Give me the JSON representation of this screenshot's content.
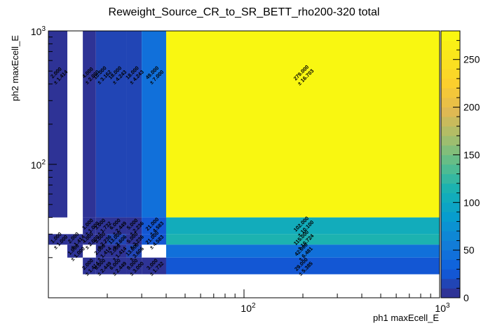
{
  "chart_data": {
    "type": "heatmap",
    "title": "Reweight_Source_CR_to_SR_BETT_rho200-320 total",
    "xlabel": "ph1 maxEcell_E",
    "ylabel": "ph2 maxEcell_E",
    "x_scale": "log",
    "y_scale": "log",
    "xlim": [
      10,
      1000
    ],
    "ylim": [
      10,
      1000
    ],
    "x_tick_labels": [
      "10^2",
      "10^3"
    ],
    "y_tick_labels": [
      "10^2",
      "10^3"
    ],
    "x_edges": [
      10,
      12.5,
      15,
      17.5,
      20,
      25,
      30,
      40,
      1000
    ],
    "y_edges": [
      10,
      15,
      20,
      25,
      30,
      40,
      1000
    ],
    "colorbar": {
      "min": 0,
      "max": 280,
      "ticks": [
        "0",
        "50",
        "100",
        "150",
        "200",
        "250"
      ]
    },
    "cells": [
      {
        "xi": 0,
        "yi": 5,
        "value": 2,
        "error": 1.414,
        "label": "2.000",
        "err_label": "± 1.414"
      },
      {
        "xi": 2,
        "yi": 5,
        "value": 4,
        "error": 2.0,
        "label": "4.000",
        "err_label": "± 2.000"
      },
      {
        "xi": 3,
        "yi": 5,
        "value": 10,
        "error": 3.162,
        "label": "10.000",
        "err_label": "± 3.162"
      },
      {
        "xi": 4,
        "yi": 5,
        "value": 18,
        "error": 4.243,
        "label": "18.000",
        "err_label": "± 4.243"
      },
      {
        "xi": 5,
        "yi": 5,
        "value": 18,
        "error": 4.243,
        "label": "18.000",
        "err_label": "± 4.243"
      },
      {
        "xi": 6,
        "yi": 5,
        "value": 49,
        "error": 7.0,
        "label": "49.000",
        "err_label": "± 7.000"
      },
      {
        "xi": 7,
        "yi": 5,
        "value": 279,
        "error": 16.703,
        "label": "279.000",
        "err_label": "± 16.703"
      },
      {
        "xi": 2,
        "yi": 4,
        "value": 1,
        "error": 1.0,
        "label": "1.000",
        "err_label": "± 1.000"
      },
      {
        "xi": 3,
        "yi": 4,
        "value": 3,
        "error": 1.732,
        "label": "3.000",
        "err_label": "± 1.732"
      },
      {
        "xi": 4,
        "yi": 4,
        "value": 6,
        "error": 2.449,
        "label": "6.000",
        "err_label": "± 2.449"
      },
      {
        "xi": 5,
        "yi": 4,
        "value": 5,
        "error": 2.236,
        "label": "5.000",
        "err_label": "± 2.236"
      },
      {
        "xi": 6,
        "yi": 4,
        "value": 21,
        "error": 4.583,
        "label": "21.000",
        "err_label": "± 4.583"
      },
      {
        "xi": 7,
        "yi": 4,
        "value": 102,
        "error": 10.1,
        "label": "102.000",
        "err_label": "± 10.100"
      },
      {
        "xi": 0,
        "yi": 3,
        "value": 1,
        "error": 1.0,
        "label": "1.000",
        "err_label": "± 1.000"
      },
      {
        "xi": 1,
        "yi": 3,
        "value": 2,
        "error": 1.414,
        "label": "2.000",
        "err_label": "± 1.414"
      },
      {
        "xi": 2,
        "yi": 3,
        "value": 4,
        "error": 2.0,
        "label": "4.000",
        "err_label": "± 2.000"
      },
      {
        "xi": 3,
        "yi": 3,
        "value": 5,
        "error": 2.236,
        "label": "5.000",
        "err_label": "± 2.236"
      },
      {
        "xi": 4,
        "yi": 3,
        "value": 13,
        "error": 3.606,
        "label": "13.000",
        "err_label": "± 3.606"
      },
      {
        "xi": 5,
        "yi": 3,
        "value": 5,
        "error": 2.236,
        "label": "5.000",
        "err_label": "± 2.236"
      },
      {
        "xi": 6,
        "yi": 3,
        "value": 21,
        "error": 4.583,
        "label": "21.000",
        "err_label": "± 4.583"
      },
      {
        "xi": 7,
        "yi": 3,
        "value": 115,
        "error": 10.724,
        "label": "115.000",
        "err_label": "± 10.724"
      },
      {
        "xi": 1,
        "yi": 2,
        "value": 1,
        "error": 1.0,
        "label": "1.000",
        "err_label": "± 1.000"
      },
      {
        "xi": 3,
        "yi": 2,
        "value": 2,
        "error": 1.414,
        "label": "2.000",
        "err_label": "± 1.414"
      },
      {
        "xi": 4,
        "yi": 2,
        "value": 2,
        "error": 1.414,
        "label": "2.000",
        "err_label": "± 1.414"
      },
      {
        "xi": 5,
        "yi": 2,
        "value": 13,
        "error": 3.606,
        "label": "13.000",
        "err_label": "± 3.606"
      },
      {
        "xi": 7,
        "yi": 2,
        "value": 42,
        "error": 6.481,
        "label": "42.000",
        "err_label": "± 6.481"
      },
      {
        "xi": 2,
        "yi": 1,
        "value": 2,
        "error": 1.414,
        "label": "2.000",
        "err_label": "± 1.414"
      },
      {
        "xi": 3,
        "yi": 1,
        "value": 6,
        "error": 2.449,
        "label": "6.000",
        "err_label": "± 2.449"
      },
      {
        "xi": 4,
        "yi": 1,
        "value": 6,
        "error": 2.449,
        "label": "6.000",
        "err_label": "± 2.449"
      },
      {
        "xi": 5,
        "yi": 1,
        "value": 9,
        "error": 3.0,
        "label": "9.000",
        "err_label": "± 3.000"
      },
      {
        "xi": 6,
        "yi": 1,
        "value": 3,
        "error": 1.732,
        "label": "3.000",
        "err_label": "± 1.732"
      },
      {
        "xi": 7,
        "yi": 1,
        "value": 29,
        "error": 5.385,
        "label": "29.000",
        "err_label": "± 5.385"
      }
    ]
  }
}
